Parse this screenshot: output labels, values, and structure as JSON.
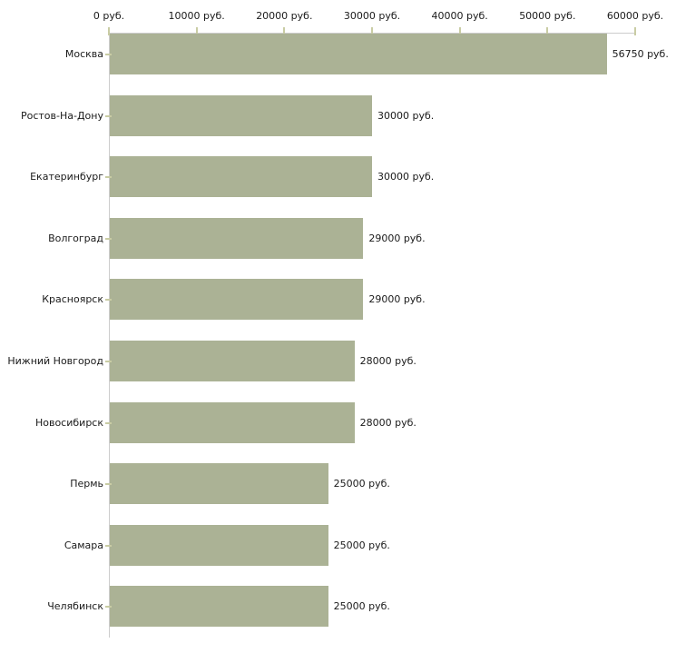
{
  "chart_data": {
    "type": "bar",
    "orientation": "horizontal",
    "title": "",
    "categories": [
      "Москва",
      "Ростов-На-Дону",
      "Екатеринбург",
      "Волгоград",
      "Красноярск",
      "Нижний Новгород",
      "Новосибирск",
      "Пермь",
      "Самара",
      "Челябинск"
    ],
    "values": [
      56750,
      30000,
      30000,
      29000,
      29000,
      28000,
      28000,
      25000,
      25000,
      25000
    ],
    "value_labels": [
      "56750 руб.",
      "30000 руб.",
      "30000 руб.",
      "29000 руб.",
      "29000 руб.",
      "28000 руб.",
      "28000 руб.",
      "25000 руб.",
      "25000 руб.",
      "25000 руб."
    ],
    "xlabel": "",
    "ylabel": "",
    "x_axis": {
      "position": "top",
      "min": 0,
      "max": 60000,
      "ticks": [
        0,
        10000,
        20000,
        30000,
        40000,
        50000,
        60000
      ],
      "tick_labels": [
        "0 руб.",
        "10000 руб.",
        "20000 руб.",
        "30000 руб.",
        "40000 руб.",
        "50000 руб.",
        "60000 руб."
      ]
    },
    "grid": false,
    "legend": false,
    "colors": {
      "bar_fill": "#abb295",
      "axis_line": "#cccccc",
      "tick_mark": "#c9cca4",
      "text": "#1a1a1a",
      "background": "#ffffff"
    }
  }
}
